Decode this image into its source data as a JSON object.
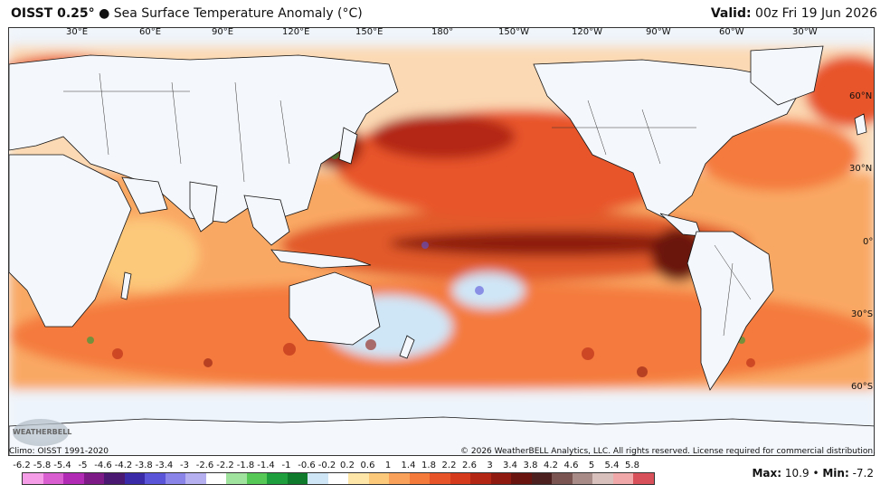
{
  "header": {
    "product": "OISST 0.25°",
    "bullet": "●",
    "description": "Sea Surface Temperature Anomaly (°C)",
    "valid_label": "Valid:",
    "valid_time": "00z Fri 19 Jun 2026"
  },
  "map": {
    "lon_labels": [
      "30°E",
      "60°E",
      "90°E",
      "120°E",
      "150°E",
      "180°",
      "150°W",
      "120°W",
      "90°W",
      "60°W",
      "30°W"
    ],
    "lat_labels": [
      "60°N",
      "30°N",
      "0°",
      "30°S",
      "60°S"
    ],
    "logo_text": "WEATHERBELL"
  },
  "footer": {
    "climo": "Climo: OISST 1991-2020",
    "copyright": "© 2026 WeatherBELL Analytics, LLC. All rights reserved. License required for commercial distribution."
  },
  "colorbar": {
    "labels": [
      "-6.2",
      "-5.8",
      "-5.4",
      "-5",
      "-4.6",
      "-4.2",
      "-3.8",
      "-3.4",
      "-3",
      "-2.6",
      "-2.2",
      "-1.8",
      "-1.4",
      "-1",
      "-0.6",
      "-0.2",
      "0.2",
      "0.6",
      "1",
      "1.4",
      "1.8",
      "2.2",
      "2.6",
      "3",
      "3.4",
      "3.8",
      "4.2",
      "4.6",
      "5",
      "5.4",
      "5.8"
    ],
    "colors": [
      "#f59de6",
      "#d95fd1",
      "#b02ab3",
      "#7d1a85",
      "#4a1870",
      "#3a2aa8",
      "#5a55d8",
      "#8a84e8",
      "#b7b0f0",
      "#ffffff",
      "#9fe39f",
      "#56c856",
      "#1e9e3c",
      "#0f7a2c",
      "#cfe6f7",
      "#ffffff",
      "#fde6a8",
      "#fcc87a",
      "#f9a15a",
      "#f47a3c",
      "#e8542a",
      "#d53a1c",
      "#b42614",
      "#8e1a10",
      "#6a1410",
      "#4d2020",
      "#7a5450",
      "#a88a86",
      "#d8c0bc",
      "#f0a8a8",
      "#d8505a"
    ]
  },
  "stats": {
    "max_label": "Max:",
    "max_value": "10.9",
    "separator": "•",
    "min_label": "Min:",
    "min_value": "-7.2"
  }
}
